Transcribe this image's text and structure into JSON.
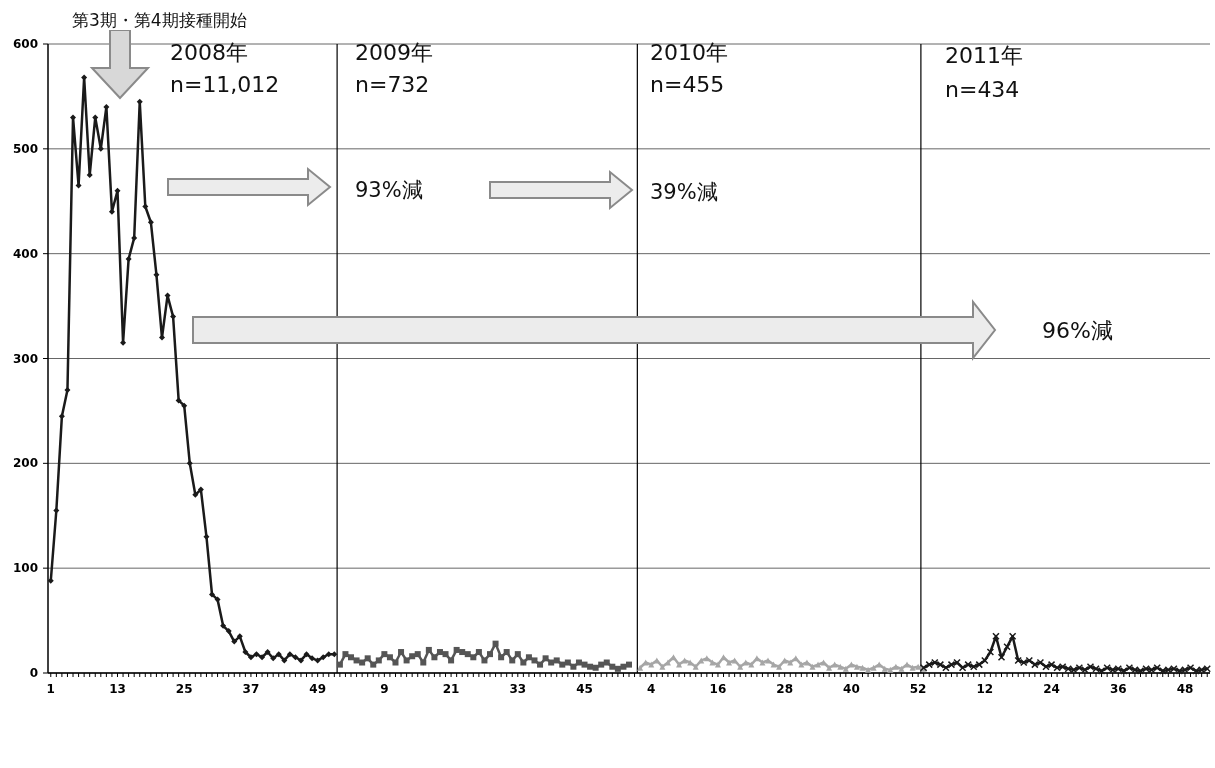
{
  "chart_data": {
    "type": "line",
    "categories": [
      "1",
      null,
      null,
      null,
      null,
      null,
      null,
      null,
      null,
      null,
      null,
      null,
      "13",
      null,
      null,
      null,
      null,
      null,
      null,
      null,
      null,
      null,
      null,
      null,
      "25",
      null,
      null,
      null,
      null,
      null,
      null,
      null,
      null,
      null,
      null,
      null,
      "37",
      null,
      null,
      null,
      null,
      null,
      null,
      null,
      null,
      null,
      null,
      null,
      "49",
      null,
      null,
      null,
      null,
      null,
      null,
      null,
      null,
      null,
      null,
      null,
      "9",
      null,
      null,
      null,
      null,
      null,
      null,
      null,
      null,
      null,
      null,
      null,
      "21",
      null,
      null,
      null,
      null,
      null,
      null,
      null,
      null,
      null,
      null,
      null,
      "33",
      null,
      null,
      null,
      null,
      null,
      null,
      null,
      null,
      null,
      null,
      null,
      "45",
      null,
      null,
      null,
      null,
      null,
      null,
      null,
      null,
      null,
      null,
      null,
      "4",
      null,
      null,
      null,
      null,
      null,
      null,
      null,
      null,
      null,
      null,
      null,
      "16",
      null,
      null,
      null,
      null,
      null,
      null,
      null,
      null,
      null,
      null,
      null,
      "28",
      null,
      null,
      null,
      null,
      null,
      null,
      null,
      null,
      null,
      null,
      null,
      "40",
      null,
      null,
      null,
      null,
      null,
      null,
      null,
      null,
      null,
      null,
      null,
      "52",
      null,
      null,
      null,
      null,
      null,
      null,
      null,
      null,
      null,
      null,
      null,
      "12",
      null,
      null,
      null,
      null,
      null,
      null,
      null,
      null,
      null,
      null,
      null,
      "24",
      null,
      null,
      null,
      null,
      null,
      null,
      null,
      null,
      null,
      null,
      null,
      "36",
      null,
      null,
      null,
      null,
      null,
      null,
      null,
      null,
      null,
      null,
      null,
      "48",
      null,
      null,
      null,
      null
    ],
    "series": [
      {
        "color": "#1a1a1a",
        "marker": "diamond",
        "values": [
          88,
          155,
          245,
          270,
          530,
          465,
          568,
          475,
          530,
          500,
          540,
          440,
          460,
          315,
          395,
          415,
          545,
          445,
          430,
          380,
          320,
          360,
          340,
          260,
          255,
          200,
          170,
          175,
          130,
          75,
          70,
          45,
          40,
          30,
          35,
          20,
          15,
          18,
          15,
          20,
          14,
          18,
          12,
          18,
          15,
          12,
          18,
          14,
          12,
          15,
          18,
          18,
          null,
          null,
          null,
          null,
          null,
          null,
          null,
          null,
          null,
          null,
          null,
          null,
          null,
          null,
          null,
          null,
          null,
          null,
          null,
          null,
          null,
          null,
          null,
          null,
          null,
          null,
          null,
          null,
          null,
          null,
          null,
          null,
          null,
          null,
          null,
          null,
          null,
          null,
          null,
          null,
          null,
          null,
          null,
          null,
          null,
          null,
          null,
          null,
          null,
          null,
          null,
          null,
          null,
          null,
          null,
          null,
          null,
          null,
          null,
          null,
          null,
          null,
          null,
          null,
          null,
          null,
          null,
          null,
          null,
          null,
          null,
          null,
          null,
          null,
          null,
          null,
          null,
          null,
          null,
          null,
          null,
          null,
          null,
          null,
          null,
          null,
          null,
          null,
          null,
          null,
          null,
          null,
          null,
          null,
          null,
          null,
          null,
          null,
          null,
          null,
          null,
          null,
          null,
          null,
          null,
          null,
          null,
          null,
          null,
          null,
          null,
          null,
          null,
          null,
          null,
          null,
          null,
          null,
          null,
          null,
          null,
          null,
          null,
          null,
          null,
          null,
          null,
          null,
          null,
          null,
          null,
          null,
          null,
          null,
          null,
          null,
          null,
          null,
          null,
          null,
          null,
          null,
          null,
          null,
          null,
          null,
          null,
          null,
          null,
          null,
          null,
          null,
          null,
          null,
          null,
          null,
          null
        ]
      },
      {
        "color": "#555555",
        "marker": "square",
        "values": [
          null,
          null,
          null,
          null,
          null,
          null,
          null,
          null,
          null,
          null,
          null,
          null,
          null,
          null,
          null,
          null,
          null,
          null,
          null,
          null,
          null,
          null,
          null,
          null,
          null,
          null,
          null,
          null,
          null,
          null,
          null,
          null,
          null,
          null,
          null,
          null,
          null,
          null,
          null,
          null,
          null,
          null,
          null,
          null,
          null,
          null,
          null,
          null,
          null,
          null,
          null,
          null,
          8,
          18,
          15,
          12,
          10,
          14,
          8,
          12,
          18,
          15,
          10,
          20,
          12,
          16,
          18,
          10,
          22,
          15,
          20,
          18,
          12,
          22,
          20,
          18,
          15,
          20,
          12,
          18,
          28,
          15,
          20,
          12,
          18,
          10,
          15,
          12,
          8,
          14,
          10,
          12,
          8,
          10,
          6,
          10,
          8,
          6,
          5,
          8,
          10,
          6,
          4,
          6,
          8,
          null,
          null,
          null,
          null,
          null,
          null,
          null,
          null,
          null,
          null,
          null,
          null,
          null,
          null,
          null,
          null,
          null,
          null,
          null,
          null,
          null,
          null,
          null,
          null,
          null,
          null,
          null,
          null,
          null,
          null,
          null,
          null,
          null,
          null,
          null,
          null,
          null,
          null,
          null,
          null,
          null,
          null,
          null,
          null,
          null,
          null,
          null,
          null,
          null,
          null,
          null,
          null,
          null,
          null,
          null,
          null,
          null,
          null,
          null,
          null,
          null,
          null,
          null,
          null,
          null,
          null,
          null,
          null,
          null,
          null,
          null,
          null,
          null,
          null,
          null,
          null,
          null,
          null,
          null,
          null,
          null,
          null,
          null,
          null,
          null,
          null,
          null,
          null,
          null,
          null,
          null,
          null,
          null,
          null,
          null,
          null,
          null,
          null,
          null,
          null,
          null,
          null,
          null,
          null
        ]
      },
      {
        "color": "#a6a6a6",
        "marker": "triangle",
        "values": [
          null,
          null,
          null,
          null,
          null,
          null,
          null,
          null,
          null,
          null,
          null,
          null,
          null,
          null,
          null,
          null,
          null,
          null,
          null,
          null,
          null,
          null,
          null,
          null,
          null,
          null,
          null,
          null,
          null,
          null,
          null,
          null,
          null,
          null,
          null,
          null,
          null,
          null,
          null,
          null,
          null,
          null,
          null,
          null,
          null,
          null,
          null,
          null,
          null,
          null,
          null,
          null,
          null,
          null,
          null,
          null,
          null,
          null,
          null,
          null,
          null,
          null,
          null,
          null,
          null,
          null,
          null,
          null,
          null,
          null,
          null,
          null,
          null,
          null,
          null,
          null,
          null,
          null,
          null,
          null,
          null,
          null,
          null,
          null,
          null,
          null,
          null,
          null,
          null,
          null,
          null,
          null,
          null,
          null,
          null,
          null,
          null,
          null,
          null,
          null,
          null,
          null,
          null,
          null,
          null,
          null,
          5,
          10,
          8,
          12,
          6,
          10,
          15,
          8,
          12,
          10,
          6,
          12,
          14,
          10,
          8,
          15,
          10,
          12,
          6,
          10,
          8,
          14,
          10,
          12,
          8,
          6,
          12,
          10,
          14,
          8,
          10,
          6,
          8,
          10,
          5,
          8,
          6,
          4,
          8,
          6,
          5,
          3,
          5,
          8,
          4,
          3,
          6,
          4,
          8,
          5,
          6,
          4,
          null,
          null,
          null,
          null,
          null,
          null,
          null,
          null,
          null,
          null,
          null,
          null,
          null,
          null,
          null,
          null,
          null,
          null,
          null,
          null,
          null,
          null,
          null,
          null,
          null,
          null,
          null,
          null,
          null,
          null,
          null,
          null,
          null,
          null,
          null,
          null,
          null,
          null,
          null,
          null,
          null,
          null,
          null,
          null,
          null,
          null,
          null,
          null,
          null,
          null,
          null
        ]
      },
      {
        "color": "#1a1a1a",
        "marker": "cross",
        "values": [
          null,
          null,
          null,
          null,
          null,
          null,
          null,
          null,
          null,
          null,
          null,
          null,
          null,
          null,
          null,
          null,
          null,
          null,
          null,
          null,
          null,
          null,
          null,
          null,
          null,
          null,
          null,
          null,
          null,
          null,
          null,
          null,
          null,
          null,
          null,
          null,
          null,
          null,
          null,
          null,
          null,
          null,
          null,
          null,
          null,
          null,
          null,
          null,
          null,
          null,
          null,
          null,
          null,
          null,
          null,
          null,
          null,
          null,
          null,
          null,
          null,
          null,
          null,
          null,
          null,
          null,
          null,
          null,
          null,
          null,
          null,
          null,
          null,
          null,
          null,
          null,
          null,
          null,
          null,
          null,
          null,
          null,
          null,
          null,
          null,
          null,
          null,
          null,
          null,
          null,
          null,
          null,
          null,
          null,
          null,
          null,
          null,
          null,
          null,
          null,
          null,
          null,
          null,
          null,
          null,
          null,
          null,
          null,
          null,
          null,
          null,
          null,
          null,
          null,
          null,
          null,
          null,
          null,
          null,
          null,
          null,
          null,
          null,
          null,
          null,
          null,
          null,
          null,
          null,
          null,
          null,
          null,
          null,
          null,
          null,
          null,
          null,
          null,
          null,
          null,
          null,
          null,
          null,
          null,
          null,
          null,
          null,
          null,
          null,
          null,
          null,
          null,
          null,
          null,
          null,
          null,
          null,
          5,
          8,
          10,
          8,
          5,
          8,
          10,
          5,
          8,
          6,
          8,
          12,
          20,
          35,
          15,
          25,
          35,
          12,
          10,
          12,
          8,
          10,
          6,
          8,
          5,
          6,
          4,
          3,
          5,
          3,
          6,
          4,
          2,
          5,
          3,
          4,
          2,
          5,
          3,
          2,
          4,
          3,
          5,
          2,
          3,
          4,
          2,
          3,
          5,
          2,
          3,
          4
        ]
      }
    ],
    "ylim": [
      0,
      600
    ],
    "yticks": [
      0,
      100,
      200,
      300,
      400,
      500,
      600
    ],
    "grid": "y",
    "annotations": [
      "第3期・第4期接種開始",
      "2008年",
      "n=11,012",
      "2009年",
      "n=732",
      "2010年",
      "n=455",
      "2011年",
      "n=434",
      "93%減",
      "39%減",
      "96%減"
    ]
  }
}
